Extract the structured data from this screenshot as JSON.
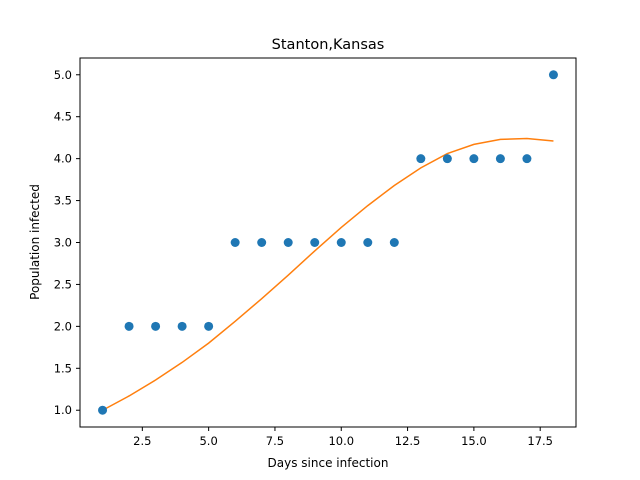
{
  "chart_data": {
    "type": "scatter",
    "title": "Stanton,Kansas",
    "xlabel": "Days since infection",
    "ylabel": "Population infected",
    "xlim": [
      0.15,
      18.85
    ],
    "ylim": [
      0.8,
      5.2
    ],
    "xticks": [
      2.5,
      5.0,
      7.5,
      10.0,
      12.5,
      15.0,
      17.5
    ],
    "xtick_labels": [
      "2.5",
      "5.0",
      "7.5",
      "10.0",
      "12.5",
      "15.0",
      "17.5"
    ],
    "yticks": [
      1.0,
      1.5,
      2.0,
      2.5,
      3.0,
      3.5,
      4.0,
      4.5,
      5.0
    ],
    "ytick_labels": [
      "1.0",
      "1.5",
      "2.0",
      "2.5",
      "3.0",
      "3.5",
      "4.0",
      "4.5",
      "5.0"
    ],
    "grid": false,
    "series": [
      {
        "kind": "scatter",
        "color": "#1f77b4",
        "x": [
          1,
          2,
          3,
          4,
          5,
          6,
          7,
          8,
          9,
          10,
          11,
          12,
          13,
          14,
          15,
          16,
          17,
          18
        ],
        "y": [
          1,
          2,
          2,
          2,
          2,
          3,
          3,
          3,
          3,
          3,
          3,
          3,
          4,
          4,
          4,
          4,
          4,
          5
        ]
      },
      {
        "kind": "line",
        "color": "#ff7f0e",
        "x": [
          1,
          2,
          3,
          4,
          5,
          6,
          7,
          8,
          9,
          10,
          11,
          12,
          13,
          14,
          15,
          16,
          17,
          18
        ],
        "y": [
          1.0,
          1.17,
          1.36,
          1.57,
          1.8,
          2.06,
          2.33,
          2.61,
          2.9,
          3.18,
          3.44,
          3.68,
          3.89,
          4.06,
          4.17,
          4.23,
          4.24,
          4.21
        ]
      }
    ]
  }
}
